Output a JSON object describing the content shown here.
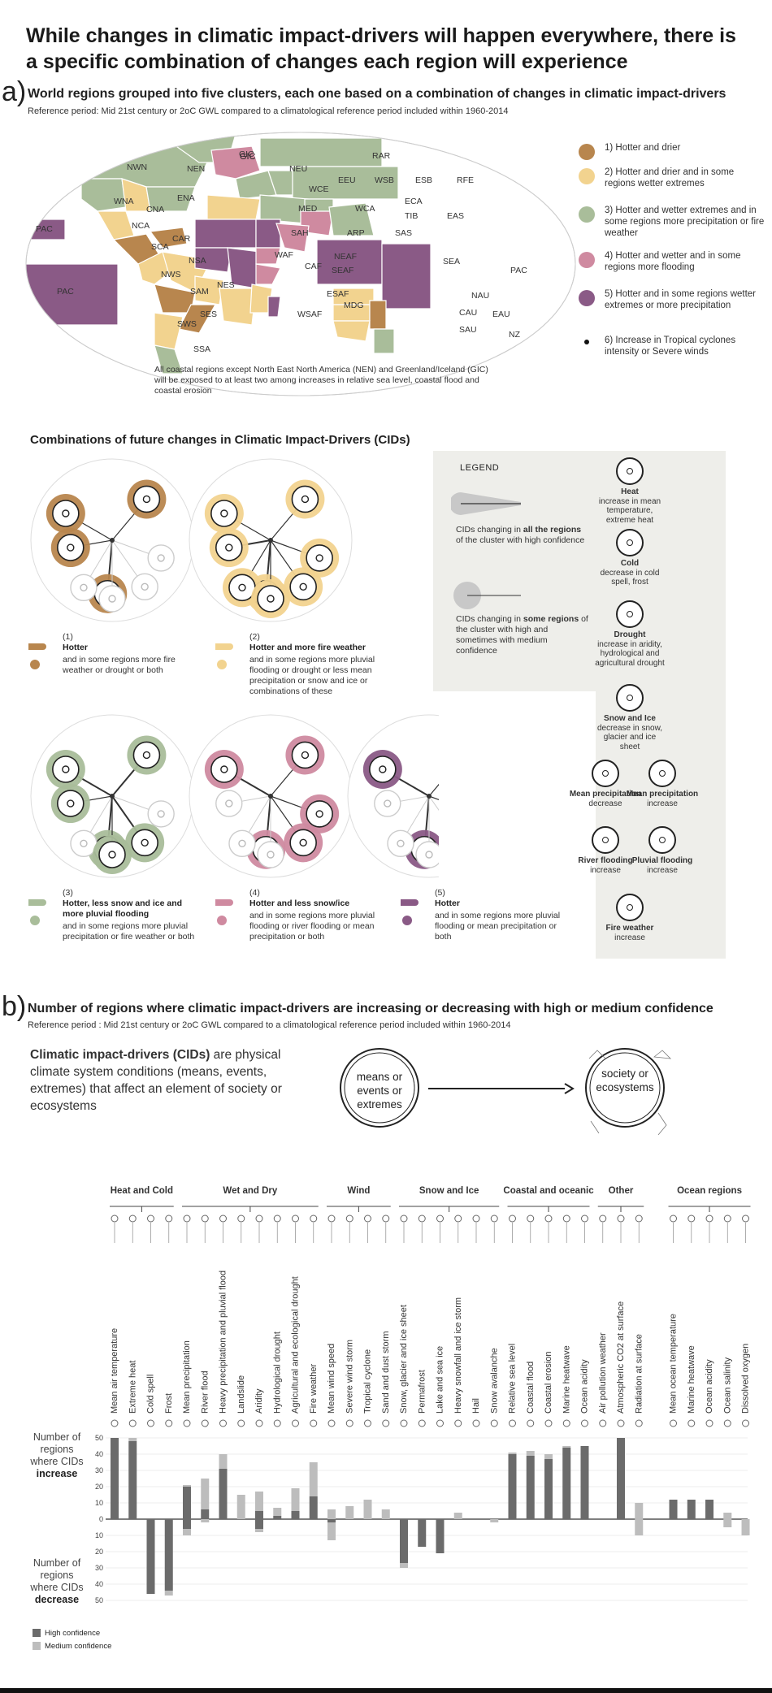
{
  "title": "While changes in climatic impact-drivers will happen everywhere, there is a specific combination of changes each region will experience",
  "panel_a": {
    "letter": "a)",
    "title": "World regions grouped into five clusters, each one based on a combination of changes in climatic impact-drivers",
    "subtitle": "Reference period: Mid 21st century or 2oC GWL compared to a climatological reference period included within 1960-2014",
    "map_note": "All coastal regions except North East North America (NEN) and Greenland/Iceland (GIC) will be exposed to at least two among increases in relative sea level, coastal flood and coastal erosion",
    "regions": [
      "GIC",
      "NWN",
      "NEN",
      "NEU",
      "RAR",
      "WNA",
      "CNA",
      "ENA",
      "EEU",
      "WCE",
      "WSB",
      "ESB",
      "RFE",
      "NCA",
      "MED",
      "WCA",
      "ECA",
      "TIB",
      "EAS",
      "PAC",
      "CAR",
      "SCA",
      "SAH",
      "ARP",
      "SAS",
      "WAF",
      "NSA",
      "NWS",
      "CAF",
      "NEAF",
      "SEAF",
      "SEA",
      "PAC",
      "SAM",
      "NES",
      "ESAF",
      "WSAF",
      "MDG",
      "NAU",
      "CAU",
      "EAU",
      "SAU",
      "NZ",
      "SWS",
      "SES",
      "SSA",
      "PAC"
    ],
    "clusters": [
      {
        "label": "1) Hotter and drier",
        "color": "#b8864e"
      },
      {
        "label": "2) Hotter and drier and in some regions wetter extremes",
        "color": "#f2d38f"
      },
      {
        "label": "3) Hotter and wetter extremes and in some regions more precipitation or fire weather",
        "color": "#a9bd9a"
      },
      {
        "label": "4) Hotter and wetter and in some regions more flooding",
        "color": "#cf8aa0"
      },
      {
        "label": "5) Hotter and in some regions wetter extremes or more precipitation",
        "color": "#8a5a86"
      },
      {
        "label": "6) Increase in Tropical cyclones intensity or Severe winds",
        "color": "#111111"
      }
    ],
    "combinations_title": "Combinations of future changes in Climatic Impact-Drivers (CIDs)",
    "combos": [
      {
        "num": "(1)",
        "head": "Hotter",
        "rest": "and in some regions more fire weather or drought or both"
      },
      {
        "num": "(2)",
        "head": "Hotter and more fire weather",
        "rest": "and in some regions more pluvial flooding or drought or less mean precipitation or snow and ice or combinations of these"
      },
      {
        "num": "(3)",
        "head": "Hotter, less snow and ice and more pluvial flooding",
        "rest": "and in some regions more pluvial precipitation or fire weather or both"
      },
      {
        "num": "(4)",
        "head": "Hotter and less snow/ice",
        "rest": "and in some regions more pluvial flooding or river flooding or mean precipitation or both"
      },
      {
        "num": "(5)",
        "head": "Hotter",
        "rest": "and in some regions more pluvial flooding or mean precipitation or both"
      }
    ],
    "legend": {
      "title": "LEGEND",
      "all_a": "CIDs changing in ",
      "all_b": "all the regions",
      "all_c": " of the cluster with high confidence",
      "some_a": "CIDs changing in ",
      "some_b": "some regions",
      "some_c": " of the cluster with high and sometimes with medium confidence",
      "heat_t": "Heat",
      "heat_d": "increase in mean temperature, extreme heat",
      "cold_t": "Cold",
      "cold_d": "decrease in cold spell, frost",
      "drought_t": "Drought",
      "drought_d": "increase in aridity, hydrological and agricultural drought",
      "snow_t": "Snow and Ice",
      "snow_d": "decrease in snow, glacier and ice sheet",
      "mpd_t": "Mean precipitation",
      "mpd_d": "decrease",
      "mpi_t": "Mean precipitation",
      "mpi_d": "increase",
      "rf_t": "River flooding",
      "rf_d": "increase",
      "pf_t": "Pluvial flooding",
      "pf_d": "increase",
      "fw_t": "Fire weather",
      "fw_d": "increase"
    }
  },
  "panel_b": {
    "letter": "b)",
    "title": "Number of regions where climatic impact-drivers are increasing or decreasing with high or medium confidence",
    "subtitle": "Reference period : Mid 21st century or 2oC GWL compared to a climatological reference period included within 1960-2014",
    "def_bold": "Climatic impact-drivers (CIDs)",
    "def_rest": " are physical climate system conditions (means, events, extremes) that affect an element of society or ecosystems",
    "circle_left": "means or events or extremes",
    "circle_right": "society or ecosystems",
    "increase_label_a": "Number of regions where CIDs",
    "increase_label_b": "increase",
    "decrease_label_a": "Number of regions where CIDs",
    "decrease_label_b": "decrease",
    "legend_high": "High confidence",
    "legend_medium": "Medium confidence"
  },
  "chart_data": {
    "type": "bar",
    "groups": [
      {
        "name": "Heat and Cold",
        "start": 0,
        "end": 3
      },
      {
        "name": "Wet and Dry",
        "start": 4,
        "end": 11
      },
      {
        "name": "Wind",
        "start": 12,
        "end": 15
      },
      {
        "name": "Snow and Ice",
        "start": 16,
        "end": 21
      },
      {
        "name": "Coastal and oceanic",
        "start": 22,
        "end": 26
      },
      {
        "name": "Other",
        "start": 27,
        "end": 29
      },
      {
        "name": "Ocean regions",
        "start": 30,
        "end": 34
      }
    ],
    "categories": [
      "Mean air temperature",
      "Extreme heat",
      "Cold spell",
      "Frost",
      "Mean precipitation",
      "River flood",
      "Heavy precipitation and pluvial flood",
      "Landslide",
      "Aridity",
      "Hydrological drought",
      "Agricultural and ecological drought",
      "Fire weather",
      "Mean wind speed",
      "Severe wind storm",
      "Tropical cyclone",
      "Sand and dust storm",
      "Snow, glacier and ice sheet",
      "Permafrost",
      "Lake and sea ice",
      "Heavy snowfall and ice storm",
      "Hail",
      "Snow avalanche",
      "Relative sea level",
      "Coastal flood",
      "Coastal erosion",
      "Marine heatwave",
      "Ocean acidity",
      "Air pollution weather",
      "Atmospheric CO2 at surface",
      "Radiation at surface",
      "Mean ocean temperature",
      "Marine heatwave",
      "Ocean acidity",
      "Ocean salinity",
      "Dissolved oxygen"
    ],
    "series": [
      {
        "name": "High confidence",
        "color": "#6b6b6b",
        "increase": [
          50,
          48,
          0,
          0,
          20,
          6,
          31,
          0,
          5,
          2,
          5,
          14,
          0,
          0,
          0,
          0,
          0,
          0,
          0,
          0,
          0,
          0,
          40,
          39,
          37,
          44,
          45,
          0,
          50,
          0,
          12,
          12,
          12,
          0,
          0
        ],
        "decrease": [
          0,
          0,
          46,
          44,
          6,
          0,
          0,
          0,
          6,
          0,
          0,
          0,
          2,
          0,
          0,
          0,
          27,
          17,
          21,
          0,
          0,
          0,
          0,
          0,
          0,
          0,
          0,
          0,
          0,
          0,
          0,
          0,
          0,
          0,
          0
        ]
      },
      {
        "name": "Medium confidence",
        "color": "#bdbdbd",
        "increase": [
          0,
          2,
          0,
          0,
          1,
          19,
          9,
          15,
          12,
          5,
          14,
          21,
          6,
          8,
          12,
          6,
          0,
          0,
          0,
          4,
          0,
          0,
          1,
          3,
          3,
          1,
          0,
          0,
          0,
          10,
          0,
          0,
          0,
          4,
          0
        ],
        "decrease": [
          0,
          0,
          0,
          3,
          4,
          2,
          0,
          0,
          2,
          0,
          0,
          0,
          11,
          0,
          0,
          0,
          3,
          0,
          0,
          0,
          0,
          2,
          0,
          0,
          0,
          0,
          0,
          0,
          0,
          10,
          0,
          0,
          0,
          5,
          10
        ]
      }
    ],
    "ylim": [
      -50,
      50
    ],
    "yticks": [
      50,
      40,
      30,
      20,
      10,
      0,
      10,
      20,
      30,
      40,
      50
    ]
  }
}
